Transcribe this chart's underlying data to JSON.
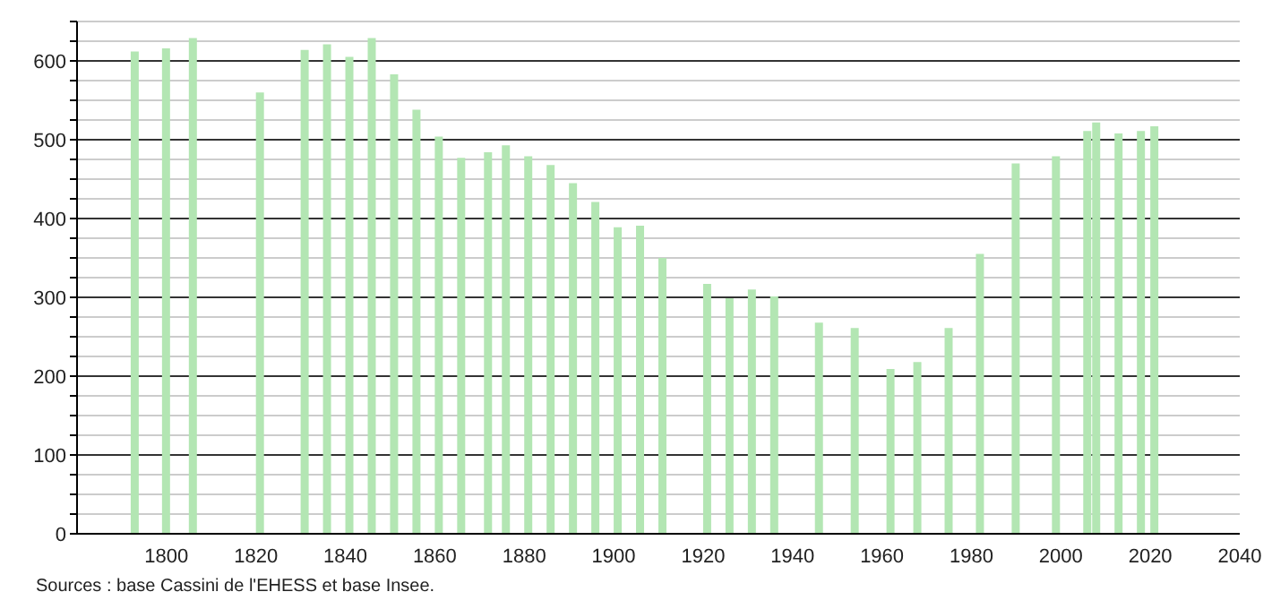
{
  "chart_data": {
    "type": "bar",
    "x": [
      1793,
      1800,
      1806,
      1821,
      1831,
      1836,
      1841,
      1846,
      1851,
      1856,
      1861,
      1866,
      1872,
      1876,
      1881,
      1886,
      1891,
      1896,
      1901,
      1906,
      1911,
      1921,
      1926,
      1931,
      1936,
      1946,
      1954,
      1962,
      1968,
      1975,
      1982,
      1990,
      1999,
      2006,
      2008,
      2013,
      2018,
      2021
    ],
    "values": [
      612,
      616,
      629,
      560,
      614,
      621,
      605,
      629,
      583,
      538,
      504,
      477,
      484,
      493,
      479,
      468,
      445,
      421,
      389,
      391,
      350,
      317,
      299,
      310,
      301,
      268,
      261,
      209,
      218,
      261,
      355,
      470,
      479,
      511,
      522,
      508,
      511,
      517
    ],
    "color": "#b3e6b3",
    "xlim": [
      1780,
      2040
    ],
    "xticks": [
      1800,
      1820,
      1840,
      1860,
      1880,
      1900,
      1920,
      1940,
      1960,
      1980,
      2000,
      2020,
      2040
    ],
    "ylim": [
      0,
      650
    ],
    "yticks": [
      0,
      {
        "value": 25,
        "label": null
      },
      {
        "value": 50,
        "label": null
      },
      {
        "value": 75,
        "label": null
      },
      100,
      {
        "value": 125,
        "label": null
      },
      {
        "value": 150,
        "label": null
      },
      {
        "value": 175,
        "label": null
      },
      200,
      {
        "value": 225,
        "label": null
      },
      {
        "value": 250,
        "label": null
      },
      {
        "value": 275,
        "label": null
      },
      300,
      {
        "value": 325,
        "label": null
      },
      {
        "value": 350,
        "label": null
      },
      {
        "value": 375,
        "label": null
      },
      400,
      {
        "value": 425,
        "label": null
      },
      {
        "value": 450,
        "label": null
      },
      {
        "value": 475,
        "label": null
      },
      500,
      {
        "value": 525,
        "label": null
      },
      {
        "value": 550,
        "label": null
      },
      {
        "value": 575,
        "label": null
      },
      600,
      {
        "value": 625,
        "label": null
      },
      {
        "value": 650,
        "label": null
      }
    ],
    "grid": "y",
    "annotations": [
      "Sources : base Cassini de l'EHESS et base Insee."
    ]
  }
}
